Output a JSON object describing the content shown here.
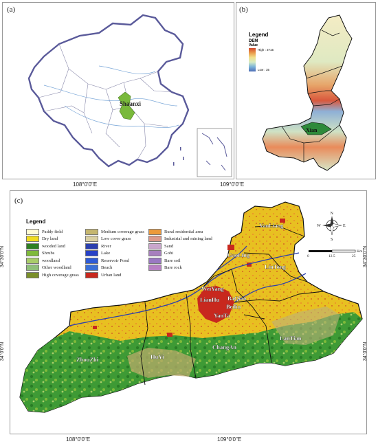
{
  "panels": {
    "a": {
      "label": "(a)",
      "region": "Shaanxi"
    },
    "b": {
      "label": "(b)",
      "legend_title": "Legend",
      "dem_label": "DEM",
      "value_label": "Value",
      "high": "High : 3715",
      "low": "Low : 35",
      "city": "Xian"
    },
    "c": {
      "label": "(c)",
      "legend_title": "Legend"
    }
  },
  "top_axis": {
    "left": "108°0'0\"E",
    "right": "109°0'0\"E"
  },
  "bottom_axis": {
    "left": "108°0'0\"E",
    "right": "109°0'0\"E"
  },
  "lat_labels": {
    "upper": "34°30'0\"N",
    "lower": "34°0'0\"N"
  },
  "scale": {
    "unit": "Km",
    "ticks": [
      "0",
      "12.5",
      "25"
    ]
  },
  "compass": {
    "n": "N",
    "s": "S",
    "e": "E",
    "w": "W"
  },
  "landuse_legend": {
    "col1": [
      {
        "name": "Paddy field",
        "color": "#fffbd2"
      },
      {
        "name": "Dry land",
        "color": "#f1dc1e"
      },
      {
        "name": "wooded land",
        "color": "#2f7f23"
      },
      {
        "name": "Shrubs",
        "color": "#7fba3a"
      },
      {
        "name": "woodland",
        "color": "#a9cc6a"
      },
      {
        "name": "Other woodland",
        "color": "#8fbf7a"
      },
      {
        "name": "High coverage grass",
        "color": "#7a8f2a"
      }
    ],
    "col2": [
      {
        "name": "Medium coverage grass",
        "color": "#c5b66f"
      },
      {
        "name": "Low cover grass",
        "color": "#d9cfa2"
      },
      {
        "name": "River",
        "color": "#2b3fae"
      },
      {
        "name": "Lake",
        "color": "#2741c7"
      },
      {
        "name": "Reservoir Pond",
        "color": "#2e5bd6"
      },
      {
        "name": "Beach",
        "color": "#3a6fd6"
      },
      {
        "name": "Urban land",
        "color": "#c8281e"
      }
    ],
    "col3": [
      {
        "name": "Rural residential area",
        "color": "#ec9a3b"
      },
      {
        "name": "Industrial and mining land",
        "color": "#dc9a8c"
      },
      {
        "name": "Sand",
        "color": "#c9a6cc"
      },
      {
        "name": "Gobi",
        "color": "#a77fbe"
      },
      {
        "name": "Bare soil",
        "color": "#9a78c2"
      },
      {
        "name": "Bare rock",
        "color": "#b880c4"
      }
    ]
  },
  "districts": [
    "YanLiang",
    "GaoLing",
    "LinTong",
    "WeiYang",
    "LianHu",
    "BaQiao",
    "Beilin",
    "YanTa",
    "LanTian",
    "ChangAn",
    "HuYi",
    "ZhouZhi"
  ]
}
